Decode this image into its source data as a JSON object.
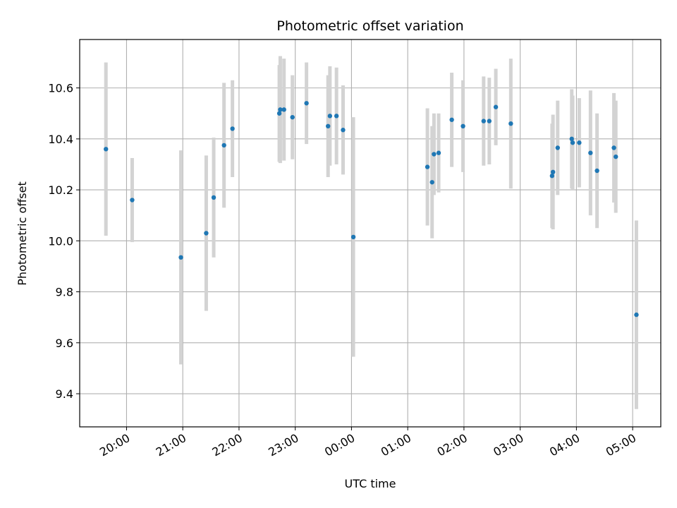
{
  "chart_data": {
    "type": "scatter",
    "title": "Photometric offset variation",
    "xlabel": "UTC time",
    "ylabel": "Photometric offset",
    "x_unit": "UTC time (hours)",
    "xlim": [
      "19:10",
      "05:30"
    ],
    "ylim": [
      9.27,
      10.79
    ],
    "grid": true,
    "x_ticks": [
      {
        "value": "20:00",
        "label": "20:00"
      },
      {
        "value": "21:00",
        "label": "21:00"
      },
      {
        "value": "22:00",
        "label": "22:00"
      },
      {
        "value": "23:00",
        "label": "23:00"
      },
      {
        "value": "00:00",
        "label": "00:00"
      },
      {
        "value": "01:00",
        "label": "01:00"
      },
      {
        "value": "02:00",
        "label": "02:00"
      },
      {
        "value": "03:00",
        "label": "03:00"
      },
      {
        "value": "04:00",
        "label": "04:00"
      },
      {
        "value": "05:00",
        "label": "05:00"
      }
    ],
    "y_ticks": [
      9.4,
      9.6,
      9.8,
      10.0,
      10.2,
      10.4,
      10.6
    ],
    "marker_color": "#1f77b4",
    "errorbar_color": "#d3d3d3",
    "points": [
      {
        "x": "19:38",
        "y": 10.36,
        "yerr": 0.34
      },
      {
        "x": "20:06",
        "y": 10.16,
        "yerr": 0.165
      },
      {
        "x": "20:58",
        "y": 9.935,
        "yerr": 0.42
      },
      {
        "x": "21:25",
        "y": 10.03,
        "yerr": 0.305
      },
      {
        "x": "21:33",
        "y": 10.17,
        "yerr": 0.235
      },
      {
        "x": "21:44",
        "y": 10.375,
        "yerr": 0.245
      },
      {
        "x": "21:53",
        "y": 10.44,
        "yerr": 0.19
      },
      {
        "x": "22:43",
        "y": 10.5,
        "yerr": 0.19
      },
      {
        "x": "22:44",
        "y": 10.515,
        "yerr": 0.21
      },
      {
        "x": "22:48",
        "y": 10.515,
        "yerr": 0.2
      },
      {
        "x": "22:57",
        "y": 10.485,
        "yerr": 0.165
      },
      {
        "x": "23:12",
        "y": 10.54,
        "yerr": 0.16
      },
      {
        "x": "23:35",
        "y": 10.45,
        "yerr": 0.2
      },
      {
        "x": "23:37",
        "y": 10.49,
        "yerr": 0.195
      },
      {
        "x": "23:44",
        "y": 10.49,
        "yerr": 0.19
      },
      {
        "x": "23:51",
        "y": 10.435,
        "yerr": 0.175
      },
      {
        "x": "00:02",
        "y": 10.015,
        "yerr": 0.47
      },
      {
        "x": "01:21",
        "y": 10.29,
        "yerr": 0.23
      },
      {
        "x": "01:26",
        "y": 10.23,
        "yerr": 0.22
      },
      {
        "x": "01:28",
        "y": 10.34,
        "yerr": 0.16
      },
      {
        "x": "01:33",
        "y": 10.345,
        "yerr": 0.155
      },
      {
        "x": "01:47",
        "y": 10.475,
        "yerr": 0.185
      },
      {
        "x": "01:59",
        "y": 10.45,
        "yerr": 0.18
      },
      {
        "x": "02:21",
        "y": 10.47,
        "yerr": 0.175
      },
      {
        "x": "02:27",
        "y": 10.47,
        "yerr": 0.17
      },
      {
        "x": "02:34",
        "y": 10.525,
        "yerr": 0.15
      },
      {
        "x": "02:50",
        "y": 10.46,
        "yerr": 0.255
      },
      {
        "x": "03:34",
        "y": 10.255,
        "yerr": 0.205
      },
      {
        "x": "03:35",
        "y": 10.27,
        "yerr": 0.225
      },
      {
        "x": "03:40",
        "y": 10.365,
        "yerr": 0.185
      },
      {
        "x": "03:55",
        "y": 10.4,
        "yerr": 0.195
      },
      {
        "x": "03:56",
        "y": 10.385,
        "yerr": 0.185
      },
      {
        "x": "04:03",
        "y": 10.385,
        "yerr": 0.175
      },
      {
        "x": "04:15",
        "y": 10.345,
        "yerr": 0.245
      },
      {
        "x": "04:22",
        "y": 10.275,
        "yerr": 0.225
      },
      {
        "x": "04:40",
        "y": 10.365,
        "yerr": 0.215
      },
      {
        "x": "04:42",
        "y": 10.33,
        "yerr": 0.22
      },
      {
        "x": "05:04",
        "y": 9.71,
        "yerr": 0.37
      }
    ]
  }
}
